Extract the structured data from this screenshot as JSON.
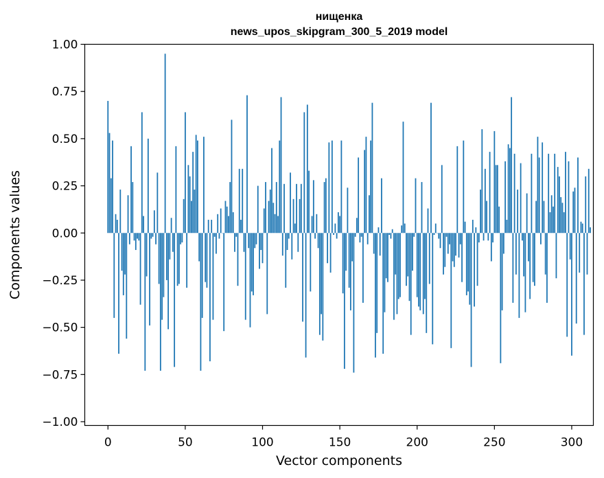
{
  "chart_data": {
    "type": "bar",
    "title_lines": [
      "нищенка",
      "news_upos_skipgram_300_5_2019 model"
    ],
    "xlabel": "Vector components",
    "ylabel": "Components values",
    "xlim": [
      -15,
      314
    ],
    "ylim": [
      -1.02,
      1.0
    ],
    "x_ticks": [
      0,
      50,
      100,
      150,
      200,
      250,
      300
    ],
    "y_ticks": [
      1.0,
      0.75,
      0.5,
      0.25,
      0.0,
      -0.25,
      -0.5,
      -0.75,
      -1.0
    ],
    "y_tick_labels": [
      "1.00",
      "0.75",
      "0.50",
      "0.25",
      "0.00",
      "−0.25",
      "−0.50",
      "−0.75",
      "−1.00"
    ],
    "grid": false,
    "bar_color": "#1f77b4",
    "values": [
      0.7,
      0.53,
      0.29,
      0.49,
      -0.45,
      0.1,
      0.07,
      -0.64,
      0.23,
      -0.2,
      -0.33,
      -0.22,
      -0.56,
      0.2,
      -0.06,
      0.46,
      0.27,
      -0.04,
      -0.09,
      -0.03,
      -0.04,
      -0.38,
      0.64,
      0.09,
      -0.73,
      -0.23,
      0.5,
      -0.49,
      -0.03,
      -0.02,
      0.12,
      -0.06,
      0.32,
      -0.27,
      -0.73,
      -0.46,
      -0.34,
      0.95,
      -0.25,
      -0.51,
      -0.14,
      0.08,
      -0.1,
      -0.71,
      0.46,
      -0.28,
      -0.27,
      -0.06,
      -0.05,
      0.18,
      0.64,
      -0.29,
      0.36,
      0.3,
      0.17,
      0.43,
      0.23,
      0.52,
      0.49,
      -0.15,
      -0.73,
      -0.45,
      0.51,
      -0.26,
      -0.29,
      0.07,
      -0.68,
      0.07,
      -0.46,
      -0.02,
      -0.11,
      0.1,
      -0.03,
      0.13,
      0.0,
      -0.52,
      0.17,
      0.14,
      0.09,
      0.27,
      0.6,
      0.11,
      -0.1,
      -0.02,
      -0.28,
      0.34,
      0.07,
      0.34,
      -0.1,
      -0.46,
      0.73,
      -0.08,
      -0.5,
      -0.31,
      -0.33,
      -0.08,
      -0.06,
      0.25,
      -0.19,
      -0.09,
      -0.16,
      0.13,
      0.27,
      -0.43,
      0.17,
      0.23,
      0.45,
      0.16,
      0.1,
      0.27,
      0.09,
      0.49,
      0.72,
      -0.12,
      0.26,
      -0.29,
      -0.09,
      -0.03,
      0.32,
      -0.14,
      0.18,
      0.05,
      0.26,
      -0.1,
      0.18,
      0.26,
      -0.47,
      0.64,
      -0.66,
      0.68,
      0.33,
      -0.31,
      0.09,
      0.28,
      -0.03,
      0.1,
      -0.08,
      -0.54,
      -0.43,
      -0.57,
      0.27,
      0.29,
      -0.16,
      0.48,
      -0.21,
      0.49,
      -0.01,
      0.05,
      -0.03,
      0.11,
      0.09,
      0.49,
      -0.32,
      -0.72,
      -0.2,
      0.24,
      -0.29,
      -0.41,
      -0.15,
      -0.74,
      -0.02,
      0.08,
      0.4,
      -0.05,
      -0.02,
      -0.37,
      0.44,
      0.51,
      -0.06,
      0.2,
      0.49,
      0.69,
      -0.11,
      -0.66,
      -0.53,
      0.03,
      -0.12,
      0.29,
      -0.64,
      -0.42,
      -0.24,
      -0.26,
      -0.01,
      -0.03,
      0.02,
      -0.46,
      -0.22,
      -0.43,
      -0.35,
      -0.34,
      0.04,
      0.59,
      0.05,
      -0.28,
      -0.23,
      -0.36,
      -0.54,
      -0.2,
      -0.02,
      0.29,
      -0.34,
      -0.39,
      -0.41,
      0.27,
      -0.43,
      -0.35,
      -0.53,
      0.13,
      -0.27,
      0.69,
      -0.59,
      -0.01,
      0.05,
      0.0,
      -0.03,
      -0.08,
      0.36,
      -0.22,
      -0.18,
      -0.02,
      -0.11,
      -0.06,
      -0.61,
      -0.15,
      -0.18,
      -0.12,
      0.46,
      -0.13,
      -0.06,
      -0.26,
      0.49,
      0.06,
      -0.33,
      -0.31,
      -0.38,
      -0.71,
      0.07,
      -0.39,
      0.03,
      -0.28,
      -0.05,
      0.23,
      0.55,
      -0.04,
      0.34,
      0.17,
      -0.04,
      0.43,
      -0.15,
      -0.05,
      0.54,
      0.36,
      0.36,
      0.14,
      -0.69,
      -0.41,
      -0.11,
      0.38,
      0.07,
      0.47,
      0.45,
      0.72,
      -0.37,
      0.42,
      -0.22,
      0.23,
      -0.45,
      0.37,
      -0.04,
      -0.23,
      -0.42,
      0.21,
      -0.15,
      -0.35,
      0.42,
      -0.26,
      -0.28,
      0.17,
      0.51,
      0.4,
      -0.06,
      0.48,
      0.17,
      -0.22,
      -0.37,
      0.42,
      0.11,
      0.2,
      0.14,
      0.42,
      -0.24,
      0.35,
      0.3,
      0.19,
      0.16,
      0.11,
      0.43,
      -0.55,
      0.38,
      -0.14,
      -0.65,
      0.22,
      0.24,
      -0.48,
      0.4,
      -0.21,
      0.06,
      0.05,
      -0.54,
      0.3,
      -0.22,
      0.34,
      0.03
    ]
  }
}
